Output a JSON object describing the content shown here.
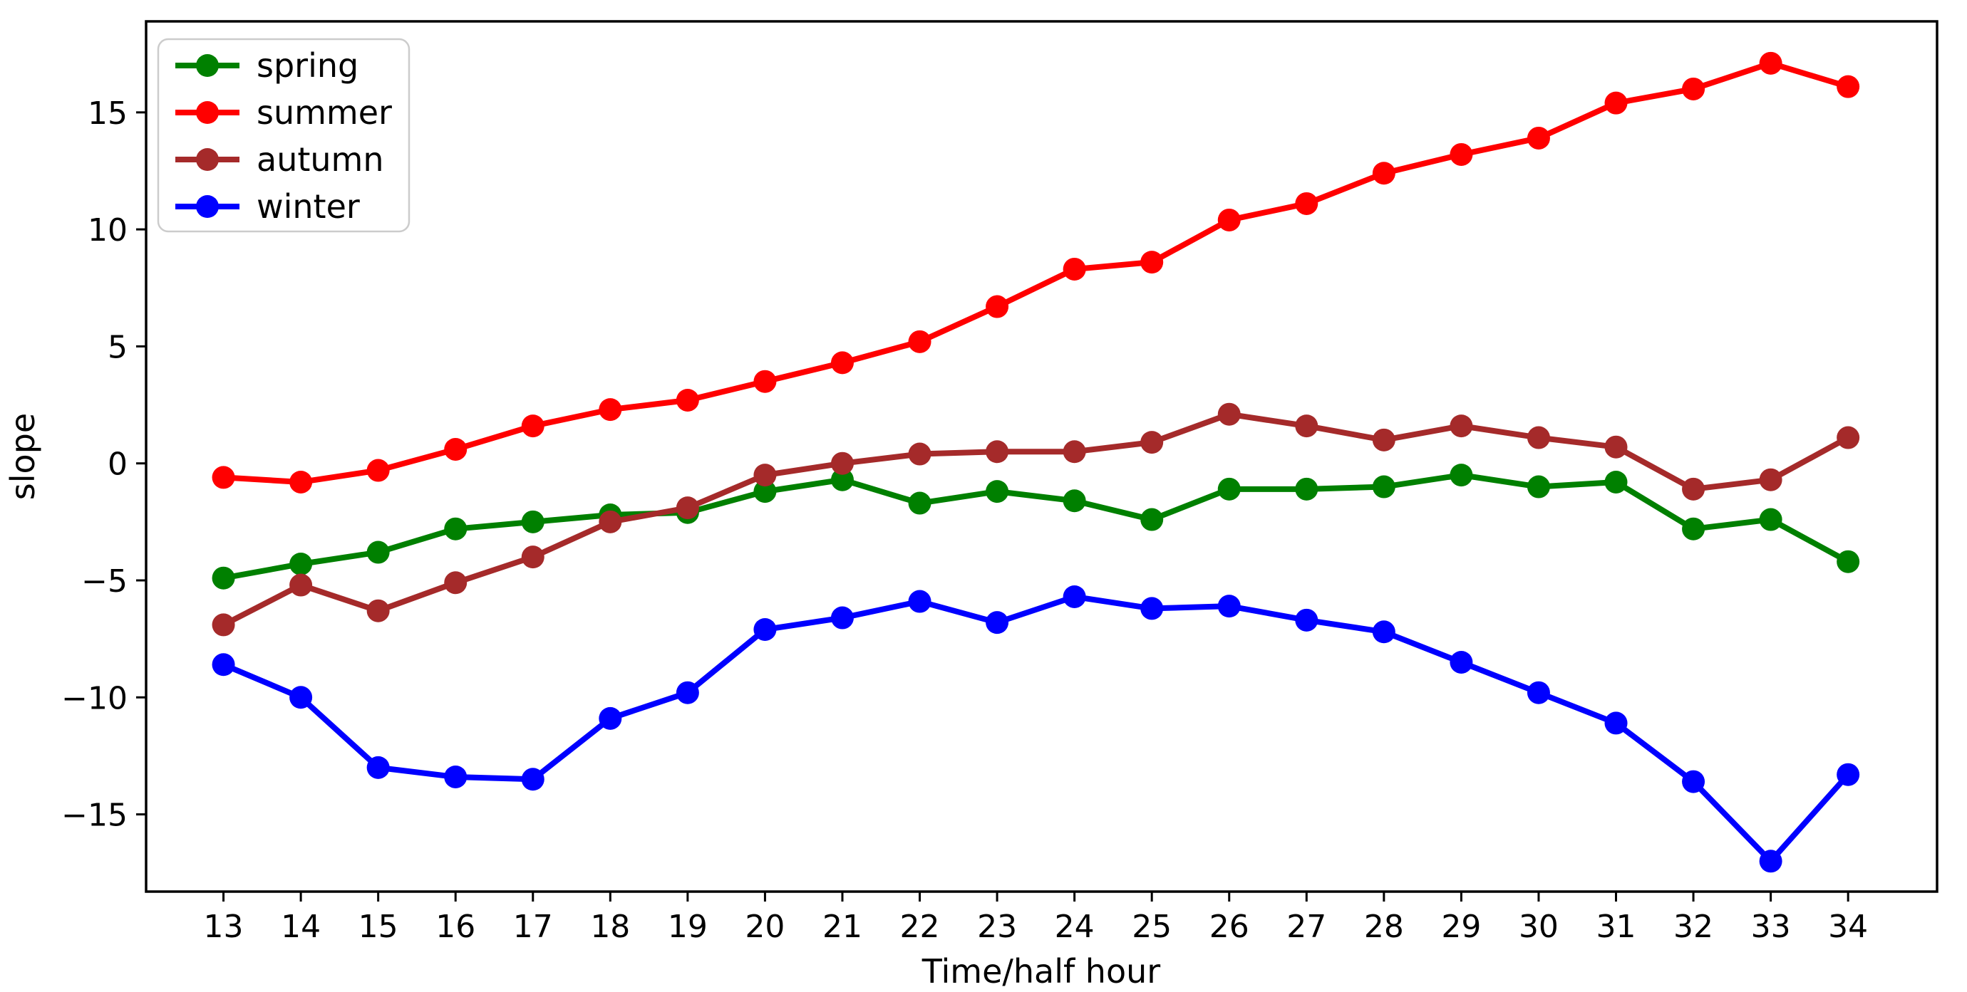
{
  "chart_data": {
    "type": "line",
    "title": "",
    "xlabel": "Time/half hour",
    "ylabel": "slope",
    "x": [
      13,
      14,
      15,
      16,
      17,
      18,
      19,
      20,
      21,
      22,
      23,
      24,
      25,
      26,
      27,
      28,
      29,
      30,
      31,
      32,
      33,
      34
    ],
    "xtick_labels": [
      "13",
      "14",
      "15",
      "16",
      "17",
      "18",
      "19",
      "20",
      "21",
      "22",
      "23",
      "24",
      "25",
      "26",
      "27",
      "28",
      "29",
      "30",
      "31",
      "32",
      "33",
      "34"
    ],
    "ytick_values": [
      15,
      10,
      5,
      0,
      -5,
      -10,
      -15
    ],
    "ytick_labels": [
      "15",
      "10",
      "5",
      "0",
      "−5",
      "−10",
      "−15"
    ],
    "xlim": [
      12.0,
      35.15
    ],
    "ylim": [
      -18.3,
      18.89
    ],
    "grid": false,
    "legend_position": "upper left",
    "marker": "o",
    "series": [
      {
        "name": "spring",
        "color": "#008000",
        "values": [
          -4.9,
          -4.3,
          -3.8,
          -2.8,
          -2.5,
          -2.2,
          -2.1,
          -1.2,
          -0.7,
          -1.7,
          -1.2,
          -1.6,
          -2.4,
          -1.1,
          -1.1,
          -1.0,
          -0.5,
          -1.0,
          -0.8,
          -2.8,
          -2.4,
          -4.2
        ]
      },
      {
        "name": "summer",
        "color": "#ff0000",
        "values": [
          -0.6,
          -0.8,
          -0.3,
          0.6,
          1.6,
          2.3,
          2.7,
          3.5,
          4.3,
          5.2,
          6.7,
          8.3,
          8.6,
          10.4,
          11.1,
          12.4,
          13.2,
          13.9,
          15.4,
          16.0,
          17.1,
          16.1
        ]
      },
      {
        "name": "autumn",
        "color": "#a52a2a",
        "values": [
          -6.9,
          -5.2,
          -6.3,
          -5.1,
          -4.0,
          -2.5,
          -1.9,
          -0.5,
          0.0,
          0.4,
          0.5,
          0.5,
          0.9,
          2.1,
          1.6,
          1.0,
          1.6,
          1.1,
          0.7,
          -1.1,
          -0.7,
          1.1
        ]
      },
      {
        "name": "winter",
        "color": "#0000ff",
        "values": [
          -8.6,
          -10.0,
          -13.0,
          -13.4,
          -13.5,
          -10.9,
          -9.8,
          -7.1,
          -6.6,
          -5.9,
          -6.8,
          -5.7,
          -6.2,
          -6.1,
          -6.7,
          -7.2,
          -8.5,
          -9.8,
          -11.1,
          -13.6,
          -17.0,
          -13.3
        ]
      }
    ],
    "style": {
      "line_width": 8,
      "marker_radius": 16,
      "spine_color": "#000000",
      "tick_color": "#000000",
      "legend_border_color": "#cccccc",
      "background": "#ffffff"
    }
  }
}
